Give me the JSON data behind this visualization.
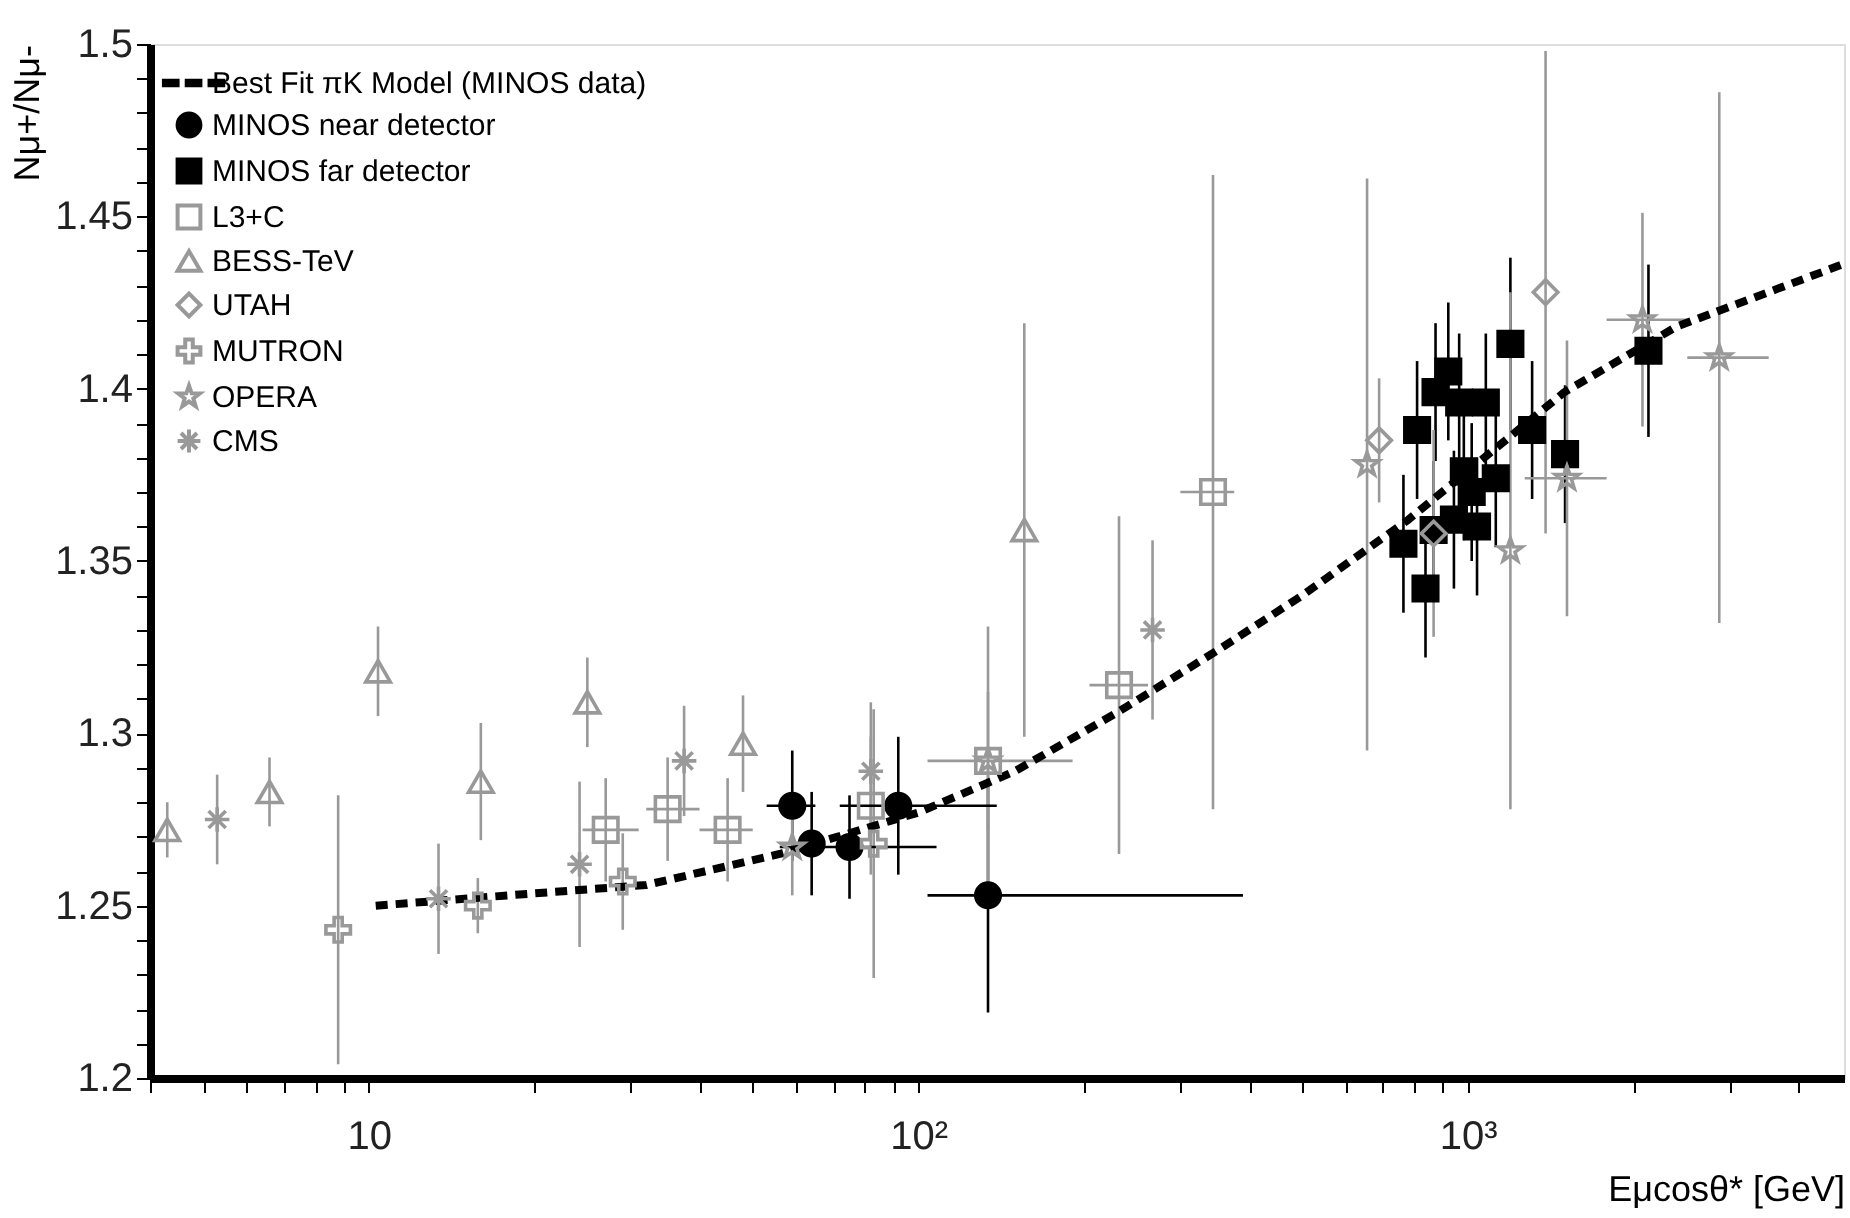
{
  "chart_data": {
    "type": "scatter",
    "xlabel": "Eμcosθ* [GeV]",
    "ylabel": "Nμ+/Nμ-",
    "log": "x",
    "grid": false,
    "legend": "top left",
    "xlim": [
      4,
      4840
    ],
    "ylim": [
      1.2,
      1.5
    ],
    "xticks": [
      {
        "value": 4,
        "label": null
      },
      {
        "value": 5,
        "label": null
      },
      {
        "value": 6,
        "label": null
      },
      {
        "value": 7,
        "label": null
      },
      {
        "value": 8,
        "label": null
      },
      {
        "value": 9,
        "label": null
      },
      {
        "value": 10,
        "label": "10"
      },
      {
        "value": 20,
        "label": null
      },
      {
        "value": 30,
        "label": null
      },
      {
        "value": 40,
        "label": null
      },
      {
        "value": 50,
        "label": null
      },
      {
        "value": 60,
        "label": null
      },
      {
        "value": 70,
        "label": null
      },
      {
        "value": 80,
        "label": null
      },
      {
        "value": 90,
        "label": null
      },
      {
        "value": 100,
        "label": "10²"
      },
      {
        "value": 200,
        "label": null
      },
      {
        "value": 300,
        "label": null
      },
      {
        "value": 400,
        "label": null
      },
      {
        "value": 500,
        "label": null
      },
      {
        "value": 600,
        "label": null
      },
      {
        "value": 700,
        "label": null
      },
      {
        "value": 800,
        "label": null
      },
      {
        "value": 900,
        "label": null
      },
      {
        "value": 1000,
        "label": "10³"
      },
      {
        "value": 2000,
        "label": null
      },
      {
        "value": 3000,
        "label": null
      },
      {
        "value": 4000,
        "label": null
      }
    ],
    "yticks": [
      1.2,
      {
        "value": 1.21,
        "label": null
      },
      {
        "value": 1.22,
        "label": null
      },
      {
        "value": 1.23,
        "label": null
      },
      {
        "value": 1.24,
        "label": null
      },
      1.25,
      {
        "value": 1.26,
        "label": null
      },
      {
        "value": 1.27,
        "label": null
      },
      {
        "value": 1.28,
        "label": null
      },
      {
        "value": 1.29,
        "label": null
      },
      1.3,
      {
        "value": 1.31,
        "label": null
      },
      {
        "value": 1.32,
        "label": null
      },
      {
        "value": 1.33,
        "label": null
      },
      {
        "value": 1.34,
        "label": null
      },
      1.35,
      {
        "value": 1.36,
        "label": null
      },
      {
        "value": 1.37,
        "label": null
      },
      {
        "value": 1.38,
        "label": null
      },
      {
        "value": 1.39,
        "label": null
      },
      1.4,
      {
        "value": 1.41,
        "label": null
      },
      {
        "value": 1.42,
        "label": null
      },
      {
        "value": 1.43,
        "label": null
      },
      {
        "value": 1.44,
        "label": null
      },
      1.45,
      {
        "value": 1.46,
        "label": null
      },
      {
        "value": 1.47,
        "label": null
      },
      {
        "value": 1.48,
        "label": null
      },
      {
        "value": 1.49,
        "label": null
      },
      1.5
    ],
    "series": [
      {
        "name": "Best Fit πK Model (MINOS data)",
        "type": "line",
        "line_style": "dashed",
        "color": "#000000",
        "x": [
          10.3,
          18,
          32,
          56,
          100,
          150,
          230,
          350,
          500,
          780,
          1500,
          2400,
          4800
        ],
        "values": [
          1.25,
          1.253,
          1.256,
          1.265,
          1.277,
          1.289,
          1.306,
          1.324,
          1.34,
          1.362,
          1.399,
          1.418,
          1.436
        ]
      },
      {
        "name": "MINOS near detector",
        "marker": "circle",
        "color": "#000000",
        "x": [
          59,
          64,
          75,
          92,
          134
        ],
        "values": [
          1.279,
          1.268,
          1.267,
          1.279,
          1.253
        ],
        "errors": [
          0.016,
          0.015,
          0.015,
          0.02,
          0.034
        ],
        "xerrors": [
          [
            53,
            65
          ],
          null,
          [
            56,
            108
          ],
          [
            72,
            139
          ],
          [
            104,
            390
          ]
        ]
      },
      {
        "name": "MINOS far detector",
        "marker": "square",
        "color": "#000000",
        "x": [
          764,
          838,
          809,
          867,
          874,
          922,
          965,
          944,
          984,
          1017,
          1040,
          1079,
          1125,
          1196,
          1310,
          1504,
          2133
        ],
        "values": [
          1.355,
          1.342,
          1.388,
          1.359,
          1.399,
          1.405,
          1.396,
          1.362,
          1.376,
          1.37,
          1.36,
          1.396,
          1.374,
          1.413,
          1.388,
          1.381,
          1.411
        ],
        "errors": [
          0.02,
          0.02,
          0.02,
          0.02,
          0.02,
          0.02,
          0.02,
          0.02,
          0.02,
          0.02,
          0.02,
          0.02,
          0.02,
          0.025,
          0.02,
          0.02,
          0.025
        ]
      },
      {
        "name": "L3+C",
        "marker": "square",
        "color": "#999999",
        "x": [
          27,
          35,
          45,
          82,
          134,
          232,
          344
        ],
        "values": [
          1.272,
          1.278,
          1.272,
          1.279,
          1.292,
          1.314,
          1.37
        ],
        "errors": [
          0.015,
          0.015,
          0.015,
          0.02,
          0.02,
          0.049,
          0.092
        ],
        "xerrors": [
          [
            24.5,
            31
          ],
          [
            32,
            40
          ],
          [
            40,
            50
          ],
          null,
          [
            104,
            191
          ],
          [
            205,
            262
          ],
          [
            300,
            376
          ]
        ]
      },
      {
        "name": "BESS-TeV",
        "marker": "triangle",
        "color": "#999999",
        "x": [
          4.3,
          6.6,
          10.4,
          16,
          25,
          48,
          156
        ],
        "values": [
          1.272,
          1.283,
          1.318,
          1.286,
          1.309,
          1.297,
          1.359
        ],
        "errors": [
          0.008,
          0.01,
          0.013,
          0.017,
          0.013,
          0.014,
          0.06
        ]
      },
      {
        "name": "UTAH",
        "marker": "diamond",
        "color": "#999999",
        "x": [
          690,
          867,
          1386
        ],
        "values": [
          1.385,
          1.358,
          1.428
        ],
        "errors": [
          0.018,
          0.03,
          0.07
        ]
      },
      {
        "name": "MUTRON",
        "marker": "cross",
        "color": "#999999",
        "x": [
          8.8,
          15.8,
          29,
          83
        ],
        "values": [
          1.243,
          1.25,
          1.257,
          1.268
        ],
        "errors": [
          0.039,
          0.008,
          0.014,
          0.039
        ]
      },
      {
        "name": "OPERA",
        "marker": "star",
        "color": "#999999",
        "x": [
          59,
          134,
          656,
          1196,
          1516,
          2080,
          2870
        ],
        "values": [
          1.267,
          1.292,
          1.378,
          1.353,
          1.374,
          1.42,
          1.409
        ],
        "errors": [
          0.014,
          0.039,
          0.083,
          0.075,
          0.04,
          0.031,
          0.077
        ],
        "xerrors": [
          null,
          null,
          null,
          null,
          [
            1270,
            1790
          ],
          [
            1790,
            2510
          ],
          [
            2510,
            3530
          ]
        ]
      },
      {
        "name": "CMS",
        "color": "#999999",
        "x": [
          5.3,
          13.4,
          24.2,
          37.5,
          82,
          267
        ],
        "values": [
          1.275,
          1.252,
          1.262,
          1.292,
          1.289,
          1.33
        ],
        "errors": [
          0.013,
          0.016,
          0.024,
          0.016,
          0.02,
          0.026
        ]
      }
    ]
  }
}
